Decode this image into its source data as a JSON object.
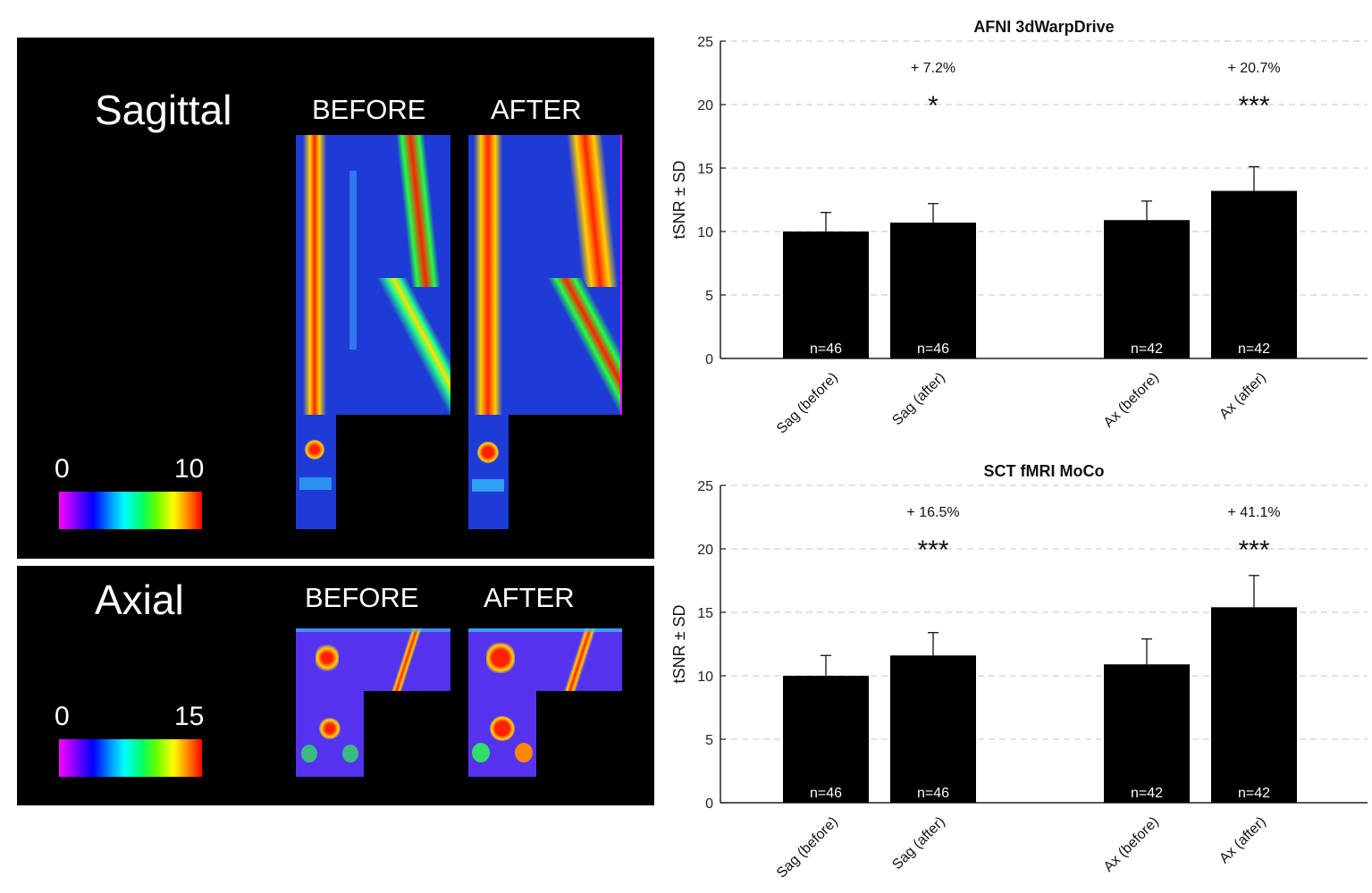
{
  "images": {
    "sagittal": {
      "title": "Sagittal",
      "before_label": "BEFORE",
      "after_label": "AFTER",
      "colorbar_min": "0",
      "colorbar_max": "10"
    },
    "axial": {
      "title": "Axial",
      "before_label": "BEFORE",
      "after_label": "AFTER",
      "colorbar_min": "0",
      "colorbar_max": "15"
    },
    "colormap": [
      "#ff00ff",
      "#6600ff",
      "#0000ff",
      "#00aaff",
      "#00ffff",
      "#00ff66",
      "#66ff00",
      "#ffff00",
      "#ff8800",
      "#ff0000"
    ]
  },
  "chart_data": [
    {
      "type": "bar",
      "title": "AFNI 3dWarpDrive",
      "ylabel": "tSNR ± SD",
      "xlabel": "",
      "ylim": [
        0,
        25
      ],
      "yticks": [
        0,
        5,
        10,
        15,
        20,
        25
      ],
      "grid": "horizontal dashed",
      "categories": [
        "Sag (before)",
        "Sag (after)",
        "Ax (before)",
        "Ax (after)"
      ],
      "values": [
        10.0,
        10.7,
        10.9,
        13.2
      ],
      "sd": [
        1.5,
        1.5,
        1.5,
        1.9
      ],
      "n_labels": [
        "n=46",
        "n=46",
        "n=42",
        "n=42"
      ],
      "annotations": [
        {
          "category": "Sag (after)",
          "percent": "+ 7.2%",
          "significance": "*"
        },
        {
          "category": "Ax (after)",
          "percent": "+ 20.7%",
          "significance": "***"
        }
      ],
      "bar_color": "#000000"
    },
    {
      "type": "bar",
      "title": "SCT fMRI MoCo",
      "ylabel": "tSNR ± SD",
      "xlabel": "",
      "ylim": [
        0,
        25
      ],
      "yticks": [
        0,
        5,
        10,
        15,
        20,
        25
      ],
      "grid": "horizontal dashed",
      "categories": [
        "Sag (before)",
        "Sag (after)",
        "Ax (before)",
        "Ax (after)"
      ],
      "values": [
        10.0,
        11.6,
        10.9,
        15.4
      ],
      "sd": [
        1.6,
        1.8,
        2.0,
        2.5
      ],
      "n_labels": [
        "n=46",
        "n=46",
        "n=42",
        "n=42"
      ],
      "annotations": [
        {
          "category": "Sag (after)",
          "percent": "+ 16.5%",
          "significance": "***"
        },
        {
          "category": "Ax (after)",
          "percent": "+ 41.1%",
          "significance": "***"
        }
      ],
      "bar_color": "#000000"
    }
  ]
}
